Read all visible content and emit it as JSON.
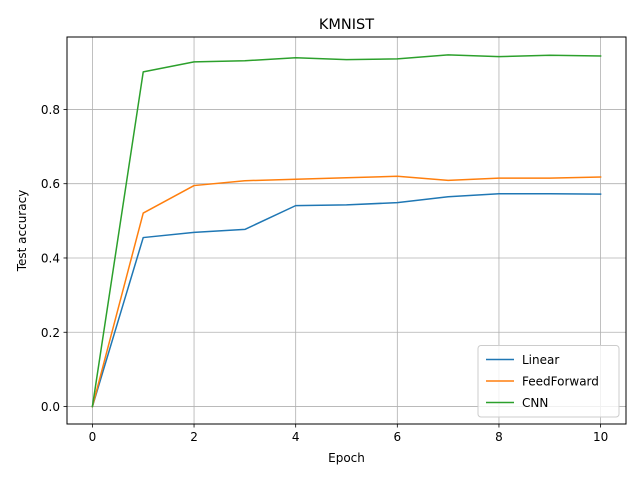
{
  "chart_data": {
    "type": "line",
    "title": "KMNIST",
    "xlabel": "Epoch",
    "ylabel": "Test accuracy",
    "x": [
      0,
      1,
      2,
      3,
      4,
      5,
      6,
      7,
      8,
      9,
      10
    ],
    "xlim": [
      -0.5,
      10.5
    ],
    "ylim": [
      -0.047,
      0.995
    ],
    "xticks": [
      0,
      2,
      4,
      6,
      8,
      10
    ],
    "xtick_labels": [
      "0",
      "2",
      "4",
      "6",
      "8",
      "10"
    ],
    "yticks": [
      0.0,
      0.2,
      0.4,
      0.6,
      0.8
    ],
    "ytick_labels": [
      "0.0",
      "0.2",
      "0.4",
      "0.6",
      "0.8"
    ],
    "grid": true,
    "legend_position": "lower-right",
    "series": [
      {
        "name": "Linear",
        "color": "#1f77b4",
        "values": [
          0.0,
          0.455,
          0.469,
          0.477,
          0.541,
          0.543,
          0.549,
          0.565,
          0.573,
          0.573,
          0.572
        ]
      },
      {
        "name": "FeedForward",
        "color": "#ff7f0e",
        "values": [
          0.0,
          0.521,
          0.595,
          0.608,
          0.612,
          0.616,
          0.62,
          0.609,
          0.615,
          0.615,
          0.618
        ]
      },
      {
        "name": "CNN",
        "color": "#2ca02c",
        "values": [
          0.0,
          0.901,
          0.928,
          0.931,
          0.939,
          0.934,
          0.936,
          0.947,
          0.942,
          0.946,
          0.944
        ]
      }
    ]
  }
}
